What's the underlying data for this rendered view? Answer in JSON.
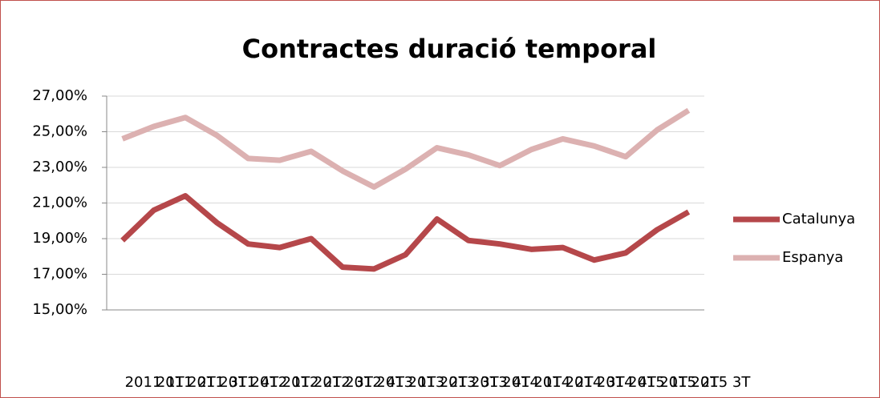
{
  "chart_data": {
    "type": "line",
    "title": "Contractes duració temporal",
    "categories": [
      "2011 1T",
      "2011 2T",
      "2011 3T",
      "2011 4T",
      "2012 1T",
      "2012 2T",
      "2012 3T",
      "2012 4T",
      "2013 1T",
      "2013 2T",
      "2013 3T",
      "2013 4T",
      "2014 1T",
      "2014 2T",
      "2014 3T",
      "2014 4T",
      "2015 1T",
      "2015 2T",
      "2015 3T"
    ],
    "series": [
      {
        "name": "Catalunya",
        "color": "#b5474a",
        "values": [
          18.9,
          20.6,
          21.4,
          19.9,
          18.7,
          18.5,
          19.0,
          17.4,
          17.3,
          18.1,
          20.1,
          18.9,
          18.7,
          18.4,
          18.5,
          17.8,
          18.2,
          19.5,
          20.5
        ]
      },
      {
        "name": "Espanya",
        "color": "#dcb1b1",
        "values": [
          24.6,
          25.3,
          25.8,
          24.8,
          23.5,
          23.4,
          23.9,
          22.8,
          21.9,
          22.9,
          24.1,
          23.7,
          23.1,
          24.0,
          24.6,
          24.2,
          23.6,
          25.1,
          26.2
        ]
      }
    ],
    "ylim": [
      15,
      27
    ],
    "yticks": [
      {
        "value": 15,
        "label": "15,00%"
      },
      {
        "value": 17,
        "label": "17,00%"
      },
      {
        "value": 19,
        "label": "19,00%"
      },
      {
        "value": 21,
        "label": "21,00%"
      },
      {
        "value": 23,
        "label": "23,00%"
      },
      {
        "value": 25,
        "label": "25,00%"
      },
      {
        "value": 27,
        "label": "27,00%"
      }
    ],
    "grid": true,
    "legend": "right"
  }
}
